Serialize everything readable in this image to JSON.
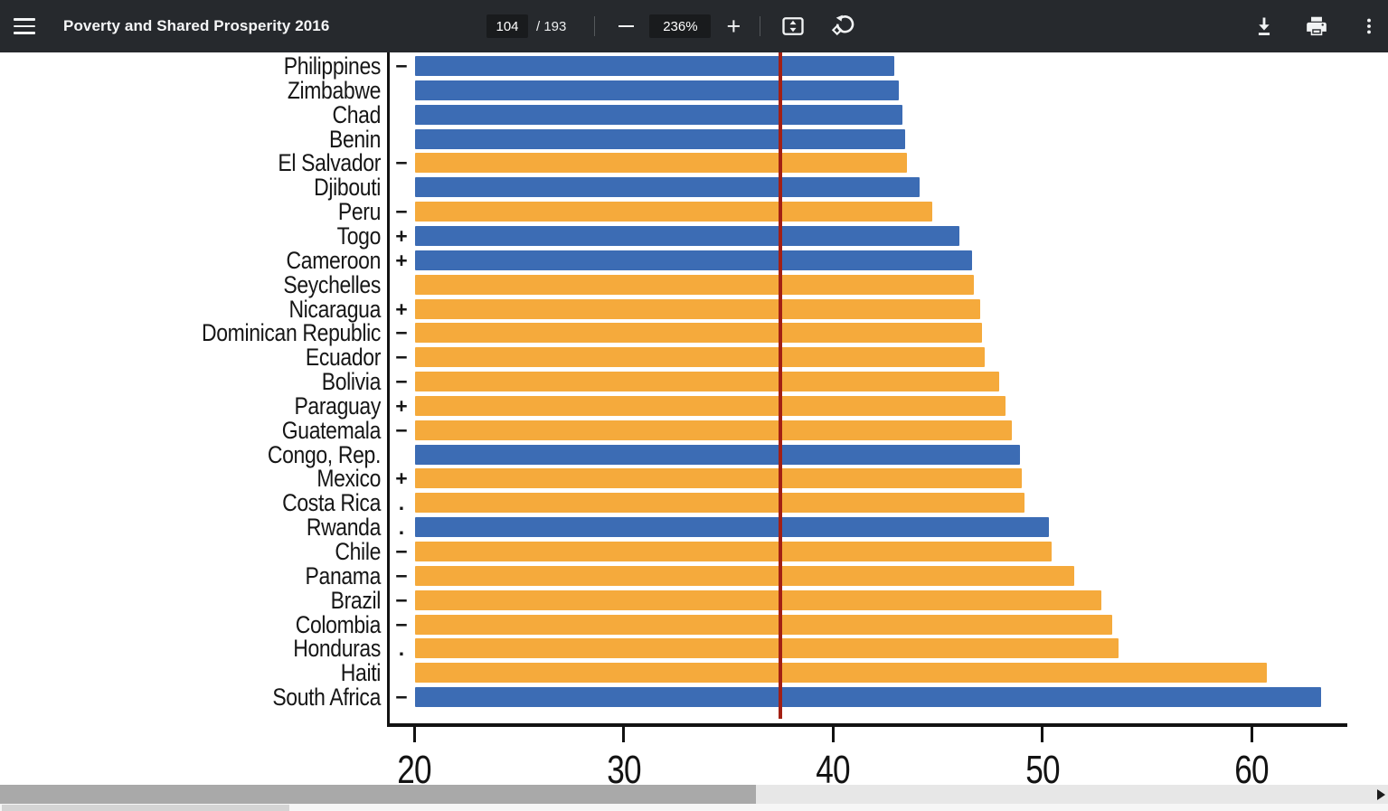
{
  "toolbar": {
    "title": "Poverty and Shared Prosperity 2016",
    "page_input_value": "104",
    "page_count_label": "/ 193",
    "zoom_value": "236%"
  },
  "chart_data": {
    "type": "bar",
    "orientation": "horizontal",
    "title": "",
    "xlabel": "",
    "ylabel": "",
    "x_ticks": [
      20,
      30,
      40,
      50,
      60
    ],
    "xlim": [
      18.8,
      64.6
    ],
    "grid": false,
    "legend": "none",
    "bar_colors": {
      "blue": "#3c6cb4",
      "orange": "#f5aa3c"
    },
    "reference_line": {
      "value": 37.5,
      "color": "#a32014"
    },
    "rows": [
      {
        "label": "Philippines",
        "sign": "−",
        "value": 42.9,
        "color": "blue"
      },
      {
        "label": "Zimbabwe",
        "sign": "",
        "value": 43.1,
        "color": "blue"
      },
      {
        "label": "Chad",
        "sign": "",
        "value": 43.3,
        "color": "blue"
      },
      {
        "label": "Benin",
        "sign": "",
        "value": 43.4,
        "color": "blue"
      },
      {
        "label": "El Salvador",
        "sign": "−",
        "value": 43.5,
        "color": "orange"
      },
      {
        "label": "Djibouti",
        "sign": "",
        "value": 44.1,
        "color": "blue"
      },
      {
        "label": "Peru",
        "sign": "−",
        "value": 44.7,
        "color": "orange"
      },
      {
        "label": "Togo",
        "sign": "+",
        "value": 46.0,
        "color": "blue"
      },
      {
        "label": "Cameroon",
        "sign": "+",
        "value": 46.6,
        "color": "blue"
      },
      {
        "label": "Seychelles",
        "sign": "",
        "value": 46.7,
        "color": "orange"
      },
      {
        "label": "Nicaragua",
        "sign": "+",
        "value": 47.0,
        "color": "orange"
      },
      {
        "label": "Dominican Republic",
        "sign": "−",
        "value": 47.1,
        "color": "orange"
      },
      {
        "label": "Ecuador",
        "sign": "−",
        "value": 47.2,
        "color": "orange"
      },
      {
        "label": "Bolivia",
        "sign": "−",
        "value": 47.9,
        "color": "orange"
      },
      {
        "label": "Paraguay",
        "sign": "+",
        "value": 48.2,
        "color": "orange"
      },
      {
        "label": "Guatemala",
        "sign": "−",
        "value": 48.5,
        "color": "orange"
      },
      {
        "label": "Congo, Rep.",
        "sign": "",
        "value": 48.9,
        "color": "blue"
      },
      {
        "label": "Mexico",
        "sign": "+",
        "value": 49.0,
        "color": "orange"
      },
      {
        "label": "Costa Rica",
        "sign": ".",
        "value": 49.1,
        "color": "orange"
      },
      {
        "label": "Rwanda",
        "sign": ".",
        "value": 50.3,
        "color": "blue"
      },
      {
        "label": "Chile",
        "sign": "−",
        "value": 50.4,
        "color": "orange"
      },
      {
        "label": "Panama",
        "sign": "−",
        "value": 51.5,
        "color": "orange"
      },
      {
        "label": "Brazil",
        "sign": "−",
        "value": 52.8,
        "color": "orange"
      },
      {
        "label": "Colombia",
        "sign": "−",
        "value": 53.3,
        "color": "orange"
      },
      {
        "label": "Honduras",
        "sign": ".",
        "value": 53.6,
        "color": "orange"
      },
      {
        "label": "Haiti",
        "sign": "",
        "value": 60.7,
        "color": "orange"
      },
      {
        "label": "South Africa",
        "sign": "−",
        "value": 63.3,
        "color": "blue"
      }
    ]
  }
}
